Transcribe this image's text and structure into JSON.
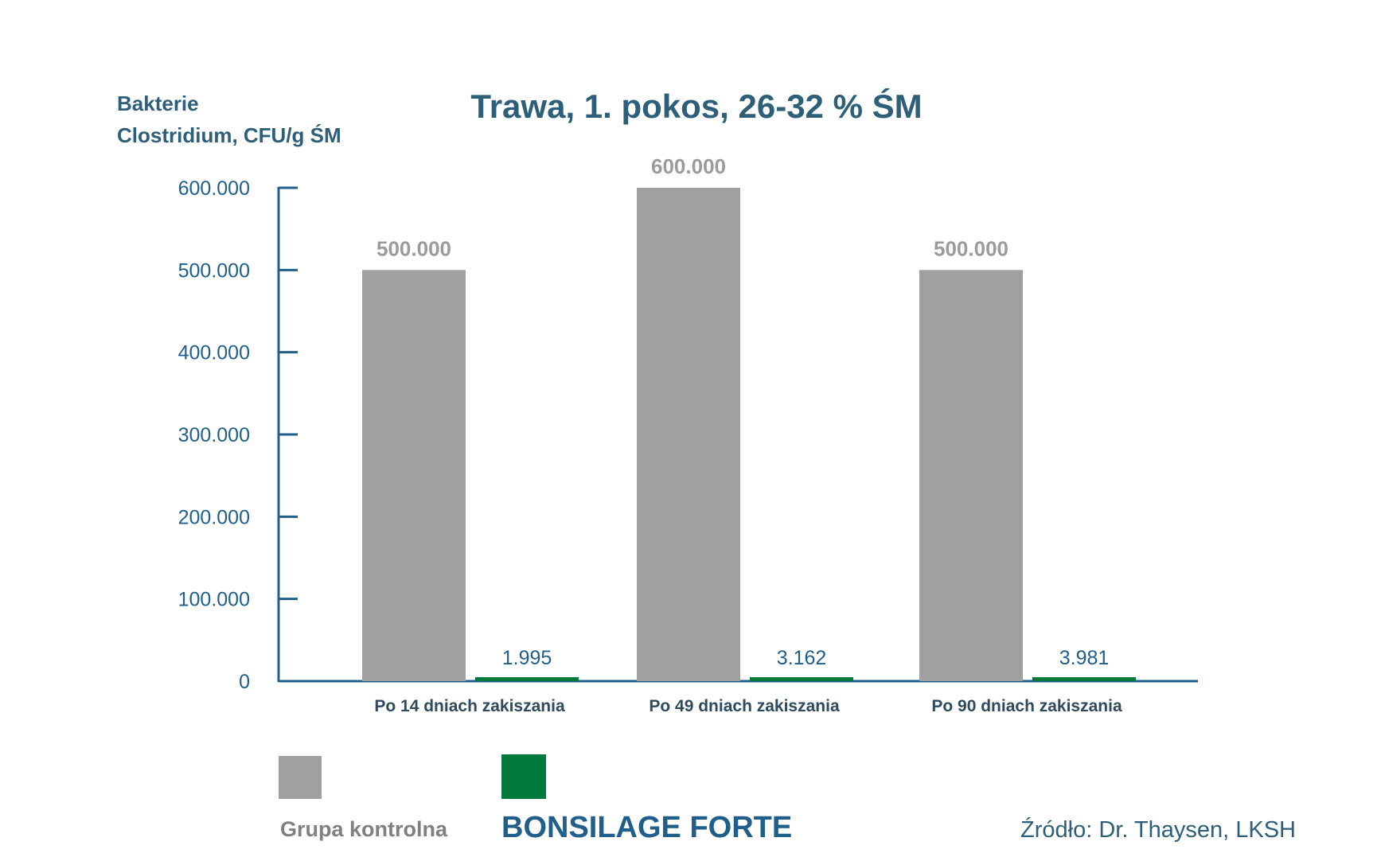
{
  "chart_data": {
    "type": "bar",
    "title": "Trawa, 1. pokos, 26-32 % ŚM",
    "ylabel": [
      "Bakterie",
      "Clostridium, CFU/g ŚM"
    ],
    "xlabel": "",
    "categories": [
      "Po 14 dniach zakiszania",
      "Po 49 dniach zakiszania",
      "Po 90 dniach zakiszania"
    ],
    "series": [
      {
        "name": "Grupa kontrolna",
        "color": "#a0a0a0",
        "values": [
          500000,
          600000,
          500000
        ],
        "labels": [
          "500.000",
          "600.000",
          "500.000"
        ]
      },
      {
        "name": "BONSILAGE FORTE",
        "color": "#007a3d",
        "values": [
          1995,
          3162,
          3981
        ],
        "labels": [
          "1.995",
          "3.162",
          "3.981"
        ]
      }
    ],
    "ylim": [
      0,
      600000
    ],
    "yticks": [
      0,
      100000,
      200000,
      300000,
      400000,
      500000,
      600000
    ],
    "ytick_labels": [
      "0",
      "100.000",
      "200.000",
      "300.000",
      "400.000",
      "500.000",
      "600.000"
    ],
    "grid": false,
    "legend_position": "bottom-left"
  },
  "source": "Źródło:  Dr. Thaysen, LKSH",
  "colors": {
    "axis": "#1f5f8a",
    "title": "#2e5f78"
  }
}
